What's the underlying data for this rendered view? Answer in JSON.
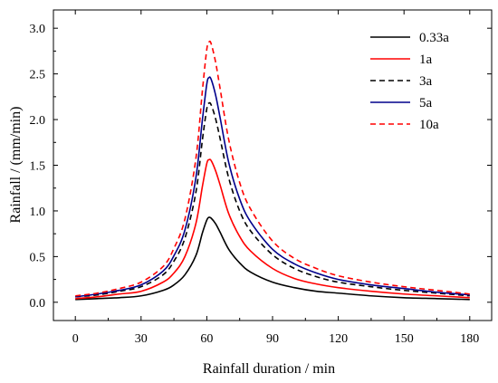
{
  "chart_data": {
    "type": "line",
    "xlabel": "Rainfall duration / min",
    "ylabel": "Rainfall / (mm/min)",
    "xlim": [
      -10,
      190
    ],
    "ylim": [
      -0.2,
      3.2
    ],
    "xticks": [
      0,
      30,
      60,
      90,
      120,
      150,
      180
    ],
    "xtick_labels": [
      "0",
      "30",
      "60",
      "90",
      "120",
      "150",
      "180"
    ],
    "yticks": [
      0.0,
      0.5,
      1.0,
      1.5,
      2.0,
      2.5,
      3.0
    ],
    "ytick_labels": [
      "0.0",
      "0.5",
      "1.0",
      "1.5",
      "2.0",
      "2.5",
      "3.0"
    ],
    "grid": false,
    "legend_position": "top-right",
    "x": [
      0,
      10,
      20,
      30,
      40,
      45,
      50,
      55,
      58,
      60,
      61,
      62,
      64,
      66,
      70,
      75,
      80,
      90,
      100,
      110,
      120,
      135,
      150,
      165,
      180
    ],
    "series": [
      {
        "name": "0.33a",
        "color": "#000000",
        "dash": "solid",
        "values": [
          0.03,
          0.04,
          0.05,
          0.07,
          0.13,
          0.19,
          0.3,
          0.51,
          0.76,
          0.9,
          0.93,
          0.92,
          0.86,
          0.77,
          0.58,
          0.43,
          0.33,
          0.22,
          0.16,
          0.12,
          0.1,
          0.07,
          0.05,
          0.04,
          0.03
        ]
      },
      {
        "name": "1a",
        "color": "#ff0000",
        "dash": "solid",
        "values": [
          0.04,
          0.06,
          0.09,
          0.12,
          0.22,
          0.32,
          0.5,
          0.86,
          1.27,
          1.52,
          1.56,
          1.55,
          1.44,
          1.29,
          0.97,
          0.72,
          0.56,
          0.37,
          0.26,
          0.2,
          0.16,
          0.12,
          0.09,
          0.07,
          0.05
        ]
      },
      {
        "name": "3a",
        "color": "#000000",
        "dash": "dashed",
        "values": [
          0.06,
          0.08,
          0.12,
          0.17,
          0.3,
          0.45,
          0.7,
          1.2,
          1.78,
          2.12,
          2.18,
          2.16,
          2.01,
          1.8,
          1.36,
          1.0,
          0.78,
          0.52,
          0.37,
          0.28,
          0.22,
          0.17,
          0.13,
          0.1,
          0.07
        ]
      },
      {
        "name": "5a",
        "color": "#00008b",
        "dash": "solid",
        "values": [
          0.06,
          0.09,
          0.13,
          0.19,
          0.34,
          0.51,
          0.79,
          1.36,
          2.0,
          2.39,
          2.46,
          2.44,
          2.27,
          2.03,
          1.53,
          1.13,
          0.88,
          0.58,
          0.42,
          0.32,
          0.25,
          0.19,
          0.15,
          0.11,
          0.08
        ]
      },
      {
        "name": "10a",
        "color": "#ff0000",
        "dash": "dashed",
        "values": [
          0.07,
          0.1,
          0.15,
          0.22,
          0.39,
          0.59,
          0.91,
          1.57,
          2.32,
          2.77,
          2.85,
          2.83,
          2.63,
          2.35,
          1.78,
          1.31,
          1.02,
          0.67,
          0.48,
          0.37,
          0.29,
          0.22,
          0.17,
          0.13,
          0.09
        ]
      }
    ]
  }
}
